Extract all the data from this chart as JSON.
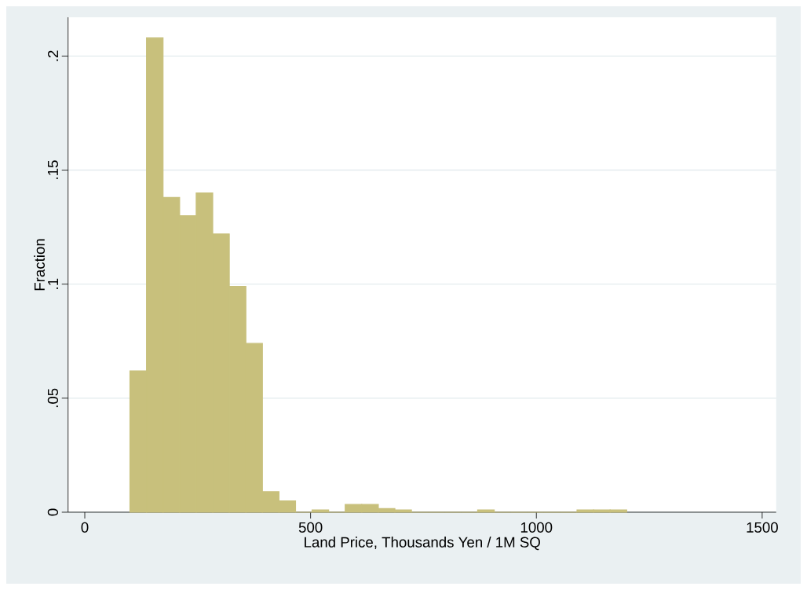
{
  "chart_data": {
    "type": "histogram",
    "xlabel": "Land Price, Thousands Yen / 1M SQ",
    "ylabel": "Fraction",
    "bins": [
      100,
      136.7,
      173.3,
      210,
      246.7,
      283.3,
      320,
      356.7,
      393.3,
      430,
      466.7,
      503.3,
      540,
      576.7,
      613.3,
      650,
      686.7,
      723.3,
      760,
      796.7,
      833.3,
      870,
      906.7,
      943.3,
      980,
      1016.7,
      1053.3,
      1090,
      1126.7,
      1163.3,
      1200
    ],
    "values": [
      0.062,
      0.208,
      0.138,
      0.13,
      0.14,
      0.122,
      0.099,
      0.074,
      0.009,
      0.005,
      0,
      0.001,
      0,
      0.0034,
      0.0034,
      0.0016,
      0.001,
      0,
      0,
      0,
      0,
      0.001,
      0,
      0,
      0,
      0,
      0,
      0.001,
      0.001,
      0.001
    ],
    "color": "#c8c07c",
    "xlim": [
      -37,
      1531
    ],
    "ylim": [
      0,
      0.217
    ],
    "xticks": [
      0,
      500,
      1000,
      1500
    ],
    "yticks": [
      0,
      {
        "value": 0.05,
        "label": ".05"
      },
      {
        "value": 0.1,
        "label": ".1"
      },
      {
        "value": 0.15,
        "label": ".15"
      },
      {
        "value": 0.2,
        "label": ".2"
      }
    ],
    "grid": "y"
  }
}
